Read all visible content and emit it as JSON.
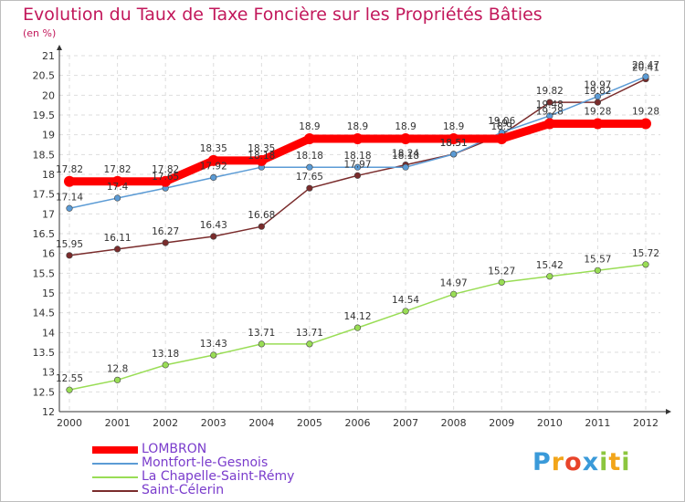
{
  "chart_data": {
    "type": "line",
    "title": "Evolution du Taux de Taxe Foncière sur les Propriétés Bâties",
    "ylabel": "(en %)",
    "xlabel": "",
    "ylim": [
      12,
      21
    ],
    "ytick_step": 0.5,
    "categories": [
      "2000",
      "2001",
      "2002",
      "2003",
      "2004",
      "2005",
      "2006",
      "2007",
      "2008",
      "2009",
      "2010",
      "2011",
      "2012"
    ],
    "series": [
      {
        "name": "LOMBRON",
        "color": "#ff0000",
        "values": [
          17.82,
          17.82,
          17.82,
          18.35,
          18.35,
          18.9,
          18.9,
          18.9,
          18.9,
          18.9,
          19.28,
          19.28,
          19.28
        ]
      },
      {
        "name": "Montfort-le-Gesnois",
        "color": "#5b9bd5",
        "values": [
          17.14,
          17.4,
          17.65,
          17.92,
          18.18,
          18.18,
          18.18,
          18.18,
          18.51,
          19.06,
          19.48,
          19.97,
          20.47
        ]
      },
      {
        "name": "La Chapelle-Saint-Rémy",
        "color": "#99dd55",
        "values": [
          12.55,
          12.8,
          13.18,
          13.43,
          13.71,
          13.71,
          14.12,
          14.54,
          14.97,
          15.27,
          15.42,
          15.57,
          15.72
        ]
      },
      {
        "name": "Saint-Célerin",
        "color": "#7a2c2c",
        "values": [
          15.95,
          16.11,
          16.27,
          16.43,
          16.68,
          17.65,
          17.97,
          18.24,
          18.51,
          19.0,
          19.82,
          19.82,
          20.41
        ]
      }
    ],
    "labels": [
      [
        "17.82",
        "17.82",
        "17.82",
        "18.35",
        "18.35",
        "18.9",
        "18.9",
        "18.9",
        "18.9",
        "18.9",
        "19.28",
        "19.28",
        "19.28"
      ],
      [
        "17.14",
        "17.4",
        "17.65",
        "17.92",
        "18.18",
        "18.18",
        "18.18",
        "18.18",
        "18.51",
        "19.06",
        "19.48",
        "19.97",
        "20.47"
      ],
      [
        "12.55",
        "12.8",
        "13.18",
        "13.43",
        "13.71",
        "13.71",
        "14.12",
        "14.54",
        "14.97",
        "15.27",
        "15.42",
        "15.57",
        "15.72"
      ],
      [
        "15.95",
        "16.11",
        "16.27",
        "16.43",
        "16.68",
        "17.65",
        "17.97",
        "18.24",
        "18.51",
        "19",
        "19.82",
        "19.82",
        "20.41"
      ]
    ]
  },
  "legend": {
    "items": [
      "LOMBRON",
      "Montfort-le-Gesnois",
      "La Chapelle-Saint-Rémy",
      "Saint-Célerin"
    ]
  },
  "logo": {
    "letters": [
      "P",
      "r",
      "o",
      "x",
      "i",
      "t",
      "i"
    ],
    "colors": [
      "#3a9ad9",
      "#f2a51a",
      "#e8442a",
      "#3a9ad9",
      "#8cc63f",
      "#f2a51a",
      "#8cc63f"
    ]
  }
}
